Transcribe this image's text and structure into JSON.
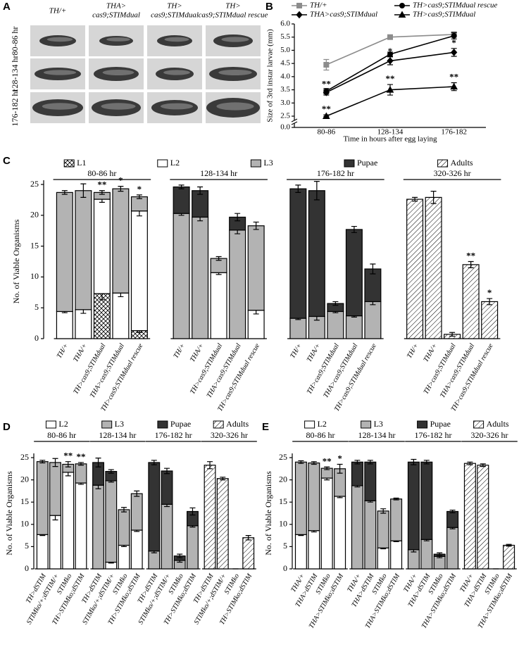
{
  "panel_a": {
    "panel": "A",
    "columns": [
      [
        "TH/+"
      ],
      [
        "THA>",
        "cas9;STIMdual"
      ],
      [
        "TH>",
        "cas9;STIMdual"
      ],
      [
        "TH>",
        "cas9;STIMdual rescue"
      ]
    ],
    "rows": [
      "80-86 hr",
      "128-134 hr",
      "176-182 hr"
    ]
  },
  "chart_data": [
    {
      "panel": "B",
      "type": "line",
      "x_label": "Time in hours after egg laying",
      "y_label": "Size of 3rd instar larvae (mm)",
      "categories": [
        "80-86",
        "128-134",
        "176-182"
      ],
      "ylim": [
        0,
        6
      ],
      "axis_break": [
        0,
        2.5
      ],
      "yticks": [
        {
          "value": 0,
          "label": "0.0"
        },
        2.5,
        {
          "value": 3,
          "label": "3.0"
        },
        3.5,
        {
          "value": 4,
          "label": "4.0"
        },
        4.5,
        {
          "value": 5,
          "label": "5.0"
        },
        5.5,
        {
          "value": 6,
          "label": "6.0"
        }
      ],
      "series": [
        {
          "name": "TH/+",
          "color": "#8c8c8c",
          "marker": "square",
          "values": [
            4.45,
            5.5,
            5.6
          ],
          "errors": [
            0.2,
            0.06,
            0.1
          ]
        },
        {
          "name": "TH>cas9;STIMdual rescue",
          "color": "#000000",
          "marker": "circle",
          "values": [
            3.45,
            4.85,
            5.55
          ],
          "errors": [
            0.1,
            0.08,
            0.12
          ]
        },
        {
          "name": "THA>cas9;STIMdual",
          "color": "#000000",
          "marker": "diamond",
          "values": [
            3.4,
            4.6,
            4.92
          ],
          "errors": [
            0.1,
            0.15,
            0.15
          ],
          "significance": [
            "**",
            "*",
            "*"
          ]
        },
        {
          "name": "TH>cas9;STIMdual",
          "color": "#000000",
          "marker": "triangle",
          "values": [
            2.5,
            3.5,
            3.62
          ],
          "errors": [
            0.05,
            0.2,
            0.15
          ],
          "significance": [
            "**",
            "**",
            "**"
          ]
        }
      ]
    },
    {
      "panel": "C",
      "type": "bar",
      "stacked": true,
      "y_label": "No. of Viable Organisms",
      "groups": [
        "80-86 hr",
        "128-134 hr",
        "176-182 hr",
        "320-326 hr"
      ],
      "categories": [
        "TH/+",
        "THA/+",
        "TH>cas9;STIMdual",
        "THA>cas9;STIMdual",
        "TH>cas9;STIMdual rescue",
        "TH/+",
        "THA/+",
        "TH>cas9;STIMdual",
        "THA>cas9;STIMdual",
        "TH>cas9;STIMdual rescue",
        "TH/+",
        "THA/+",
        "TH>cas9;STIMdual",
        "THA>cas9;STIMdual",
        "TH>cas9;STIMdual rescue",
        "TH/+",
        "THA/+",
        "TH>cas9;STIMdual",
        "THA>cas9;STIMdual",
        "TH>cas9;STIMdual rescue"
      ],
      "ylim": [
        0,
        25
      ],
      "yticks": [
        0,
        5,
        10,
        15,
        20,
        25
      ],
      "significance": [
        null,
        null,
        "**",
        "*",
        "*",
        null,
        null,
        null,
        null,
        null,
        null,
        null,
        null,
        null,
        null,
        null,
        null,
        null,
        "**",
        "*"
      ],
      "series": [
        {
          "name": "L1",
          "color": "#ffffff",
          "pattern": "crosshatch",
          "values": [
            null,
            null,
            7.3,
            null,
            1.3,
            null,
            null,
            null,
            null,
            null,
            null,
            null,
            null,
            null,
            null,
            null,
            null,
            null,
            null,
            null
          ],
          "errors": [
            null,
            null,
            1.0,
            null,
            0.3,
            null,
            null,
            null,
            null,
            null,
            null,
            null,
            null,
            null,
            null,
            null,
            null,
            null,
            null,
            null
          ]
        },
        {
          "name": "L2",
          "color": "#ffffff",
          "values": [
            4.4,
            4.7,
            15.3,
            7.4,
            19.4,
            null,
            null,
            10.7,
            null,
            4.6,
            null,
            null,
            null,
            null,
            null,
            null,
            null,
            null,
            null,
            null
          ],
          "errors": [
            0.2,
            0.6,
            0.5,
            0.6,
            0.8,
            null,
            null,
            0.3,
            null,
            0.6,
            null,
            null,
            null,
            null,
            null,
            null,
            null,
            null,
            null,
            null
          ]
        },
        {
          "name": "L3",
          "color": "#b3b3b3",
          "values": [
            19.3,
            19.3,
            1.1,
            16.9,
            2.3,
            20.3,
            19.7,
            2.3,
            17.6,
            13.7,
            3.3,
            3.6,
            4.4,
            3.7,
            6.0,
            null,
            null,
            null,
            null,
            null
          ],
          "errors": [
            0.3,
            1.1,
            0.3,
            0.4,
            0.3,
            0.3,
            0.6,
            0.3,
            0.6,
            0.6,
            0.2,
            0.6,
            0.2,
            0.2,
            0.5,
            null,
            null,
            null,
            null,
            null
          ]
        },
        {
          "name": "Pupae",
          "color": "#333333",
          "values": [
            null,
            null,
            null,
            null,
            null,
            4.3,
            4.3,
            null,
            2.1,
            null,
            21.0,
            20.4,
            1.3,
            14.0,
            5.3,
            null,
            null,
            null,
            null,
            null
          ],
          "errors": [
            null,
            null,
            null,
            null,
            null,
            0.3,
            0.6,
            null,
            0.6,
            null,
            0.6,
            1.5,
            0.3,
            0.5,
            0.8,
            null,
            null,
            null,
            null,
            null
          ]
        },
        {
          "name": "Adults",
          "color": "#ffffff",
          "pattern": "diagonal",
          "values": [
            null,
            null,
            null,
            null,
            null,
            null,
            null,
            null,
            null,
            null,
            null,
            null,
            null,
            null,
            null,
            22.6,
            22.9,
            0.7,
            12.0,
            6.0
          ],
          "errors": [
            null,
            null,
            null,
            null,
            null,
            null,
            null,
            null,
            null,
            null,
            null,
            null,
            null,
            null,
            null,
            0.3,
            1.0,
            0.3,
            0.5,
            0.5
          ]
        }
      ]
    },
    {
      "panel": "D",
      "type": "bar",
      "stacked": true,
      "y_label": "No. of Viable Organisms",
      "groups": [
        "80-86 hr",
        "128-134 hr",
        "176-182 hr",
        "320-326 hr"
      ],
      "categories": [
        "TH>dSTIM",
        "STIMko/+;dSTIM/+",
        "STIMko",
        "TH>STIMko;dSTIM",
        "TH>dSTIM",
        "STIMko/+;dSTIM/+",
        "STIMko",
        "TH>STIMko;dSTIM",
        "TH>dSTIM",
        "STIMko/+;dSTIM/+",
        "STIMko",
        "TH>STIMko;dSTIM",
        "TH>dSTIM",
        "STIMko/+;dSTIM/+",
        "STIMko",
        "TH>STIMko;dSTIM"
      ],
      "ylim": [
        0,
        25
      ],
      "yticks": [
        0,
        5,
        10,
        15,
        20,
        25
      ],
      "significance": [
        null,
        null,
        "**",
        "**",
        null,
        null,
        null,
        null,
        null,
        null,
        null,
        null,
        null,
        null,
        null,
        null
      ],
      "series": [
        {
          "name": "L2",
          "color": "#ffffff",
          "values": [
            7.7,
            12.0,
            21.7,
            19.3,
            null,
            1.5,
            5.3,
            8.7,
            null,
            null,
            null,
            null,
            null,
            null,
            null,
            null
          ],
          "errors": [
            0.2,
            1.0,
            0.8,
            0.3,
            null,
            0.2,
            0.3,
            0.3,
            null,
            null,
            null,
            null,
            null,
            null,
            null,
            null
          ]
        },
        {
          "name": "L3",
          "color": "#b3b3b3",
          "values": [
            16.4,
            11.9,
            1.8,
            4.3,
            18.8,
            18.3,
            8.0,
            8.2,
            4.0,
            14.5,
            1.9,
            9.7,
            null,
            null,
            null,
            null
          ],
          "errors": [
            0.3,
            0.9,
            0.6,
            0.3,
            0.8,
            0.3,
            0.5,
            0.6,
            0.4,
            0.5,
            0.4,
            0.3,
            null,
            null,
            null,
            null
          ]
        },
        {
          "name": "Pupae",
          "color": "#333333",
          "values": [
            null,
            null,
            null,
            null,
            5.1,
            2.1,
            null,
            null,
            19.9,
            7.5,
            1.0,
            3.2,
            null,
            null,
            null,
            null
          ],
          "errors": [
            null,
            null,
            null,
            null,
            1.0,
            0.4,
            null,
            null,
            0.5,
            0.6,
            0.4,
            0.8,
            null,
            null,
            null,
            null
          ]
        },
        {
          "name": "Adults",
          "color": "#ffffff",
          "pattern": "diagonal",
          "values": [
            null,
            null,
            null,
            null,
            null,
            null,
            null,
            null,
            null,
            null,
            null,
            null,
            23.3,
            20.3,
            0,
            7.0
          ],
          "errors": [
            null,
            null,
            null,
            null,
            null,
            null,
            null,
            null,
            null,
            null,
            null,
            null,
            0.8,
            0.3,
            0,
            0.5
          ]
        }
      ]
    },
    {
      "panel": "E",
      "type": "bar",
      "stacked": true,
      "y_label": "No. of Viable Organisms",
      "groups": [
        "80-86 hr",
        "128-134 hr",
        "176-182 hr",
        "320-326 hr"
      ],
      "categories": [
        "THA/+",
        "THA>dSTIM",
        "STIMko",
        "THA>STIMko;dSTIM",
        "THA/+",
        "THA>dSTIM",
        "STIMko",
        "THA>STIMko;dSTIM",
        "THA/+",
        "THA>dSTIM",
        "STIMko",
        "THA>STIMko;dSTIM",
        "THA/+",
        "THA>dSTIM",
        "STIMko",
        "THA>STIMko;dSTIM"
      ],
      "ylim": [
        0,
        25
      ],
      "yticks": [
        0,
        5,
        10,
        15,
        20,
        25
      ],
      "significance": [
        null,
        null,
        "**",
        "*",
        null,
        null,
        null,
        null,
        null,
        null,
        null,
        null,
        null,
        null,
        null,
        null
      ],
      "series": [
        {
          "name": "L2",
          "color": "#ffffff",
          "values": [
            7.7,
            8.6,
            20.4,
            16.3,
            null,
            null,
            4.7,
            6.3,
            null,
            null,
            null,
            null,
            null,
            null,
            null,
            null
          ],
          "errors": [
            0.2,
            0.3,
            0.4,
            0.3,
            null,
            null,
            0.2,
            0.2,
            null,
            null,
            null,
            null,
            null,
            null,
            null,
            null
          ]
        },
        {
          "name": "L3",
          "color": "#b3b3b3",
          "values": [
            16.3,
            15.2,
            2.2,
            6.2,
            18.7,
            15.3,
            8.3,
            9.4,
            4.3,
            6.6,
            2.8,
            9.3,
            null,
            null,
            null,
            null
          ],
          "errors": [
            0.3,
            0.3,
            0.3,
            1.0,
            0.3,
            0.3,
            0.5,
            0.2,
            0.5,
            0.3,
            0.3,
            0.3,
            null,
            null,
            null,
            null
          ]
        },
        {
          "name": "Pupae",
          "color": "#333333",
          "values": [
            null,
            null,
            null,
            null,
            5.3,
            8.7,
            null,
            null,
            19.7,
            17.4,
            0.5,
            3.6,
            null,
            null,
            null,
            null
          ],
          "errors": [
            null,
            null,
            null,
            null,
            0.4,
            0.4,
            null,
            null,
            0.6,
            0.4,
            0.3,
            0.3,
            null,
            null,
            null,
            null
          ]
        },
        {
          "name": "Adults",
          "color": "#ffffff",
          "pattern": "diagonal",
          "values": [
            null,
            null,
            null,
            null,
            null,
            null,
            null,
            null,
            null,
            null,
            null,
            null,
            23.7,
            23.3,
            0,
            5.3
          ],
          "errors": [
            null,
            null,
            null,
            null,
            null,
            null,
            null,
            null,
            null,
            null,
            null,
            null,
            0.3,
            0.3,
            0,
            0.2
          ]
        }
      ]
    }
  ]
}
